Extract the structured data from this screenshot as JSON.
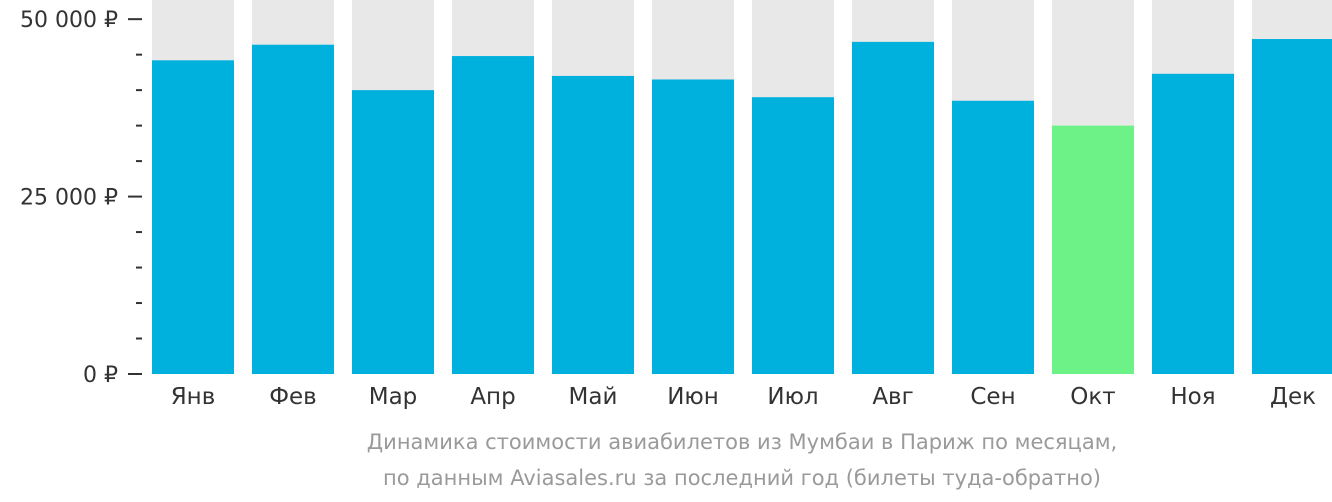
{
  "chart_data": {
    "type": "bar",
    "categories": [
      "Янв",
      "Фев",
      "Мар",
      "Апр",
      "Май",
      "Июн",
      "Июл",
      "Авг",
      "Сен",
      "Окт",
      "Ноя",
      "Дек"
    ],
    "values": [
      44200,
      46400,
      40000,
      44800,
      42000,
      41500,
      39000,
      46800,
      38500,
      35000,
      42300,
      47200
    ],
    "highlight_category": "Окт",
    "ylim": [
      0,
      52700
    ],
    "y_ticks": [
      {
        "value": 0,
        "label": "0 ₽"
      },
      {
        "value": 25000,
        "label": "25 000 ₽"
      },
      {
        "value": 50000,
        "label": "50 000 ₽"
      }
    ],
    "y_minor_step": 5000,
    "colors": {
      "bar": "#00b0dd",
      "highlight": "#6cf287",
      "background_bar": "#e8e8e8",
      "axis_text": "#333333",
      "caption": "#9a9a9a"
    },
    "caption_line1": "Динамика стоимости авиабилетов из Мумбаи в Париж по месяцам,",
    "caption_line2": "по данным Aviasales.ru за последний год (билеты туда-обратно)"
  }
}
